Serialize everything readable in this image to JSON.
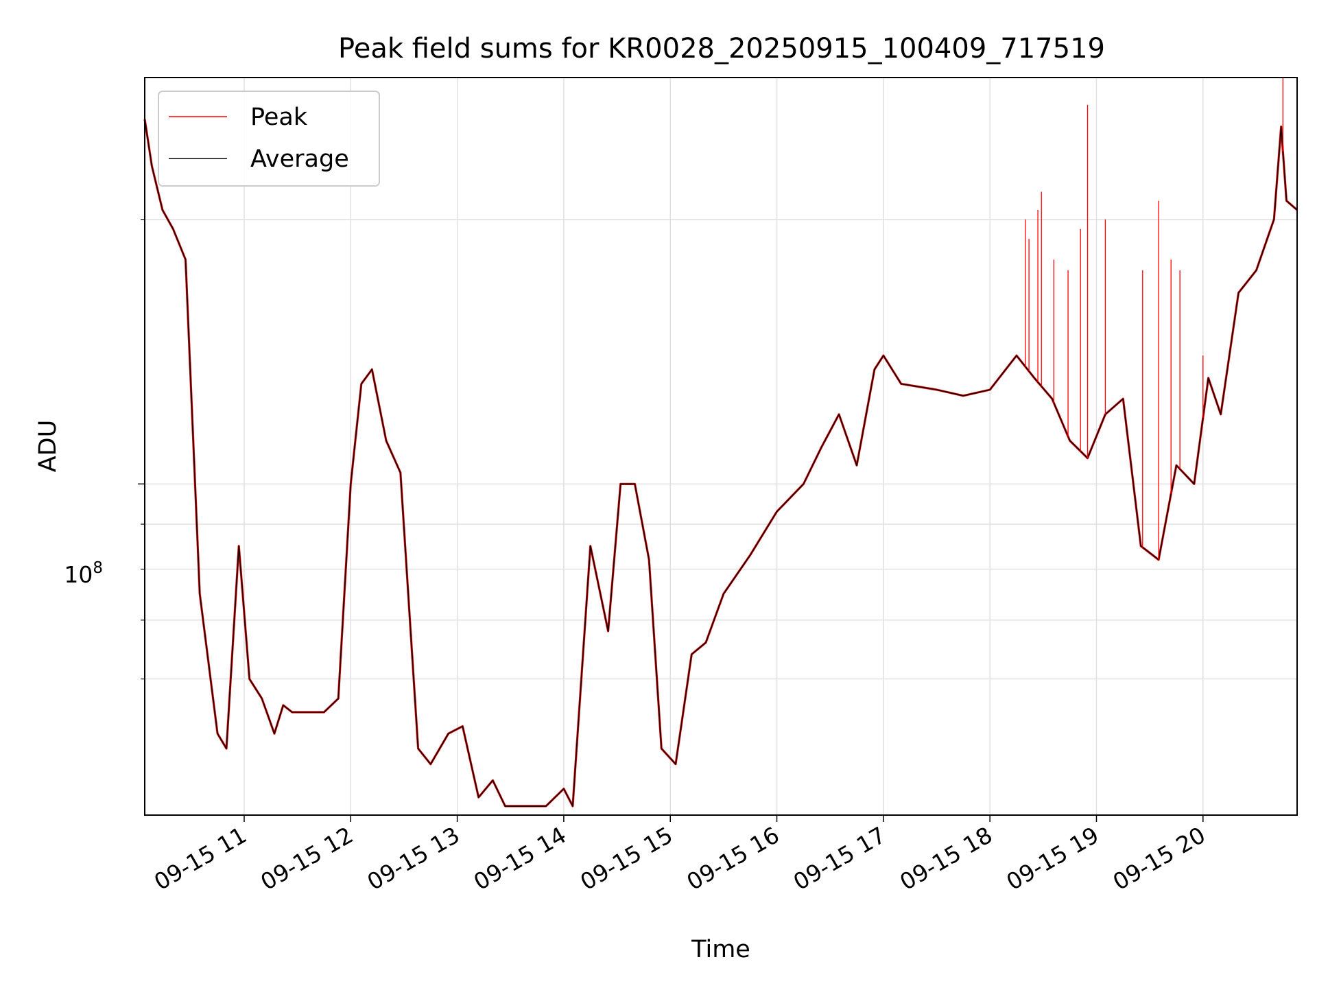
{
  "chart_data": {
    "type": "line",
    "title": "Peak field sums for KR0028_20250915_100409_717519",
    "xlabel": "Time",
    "ylabel": "ADU",
    "y_scale": "log",
    "y_tick_base": "10",
    "y_tick_exp": "8",
    "xlim": [
      "2025-09-15 10:04",
      "2025-09-15 20:53"
    ],
    "ylim": [
      42000000,
      290000000
    ],
    "x_ticks": [
      "09-15 11",
      "09-15 12",
      "09-15 13",
      "09-15 14",
      "09-15 15",
      "09-15 16",
      "09-15 17",
      "09-15 18",
      "09-15 19",
      "09-15 20"
    ],
    "x_tick_times": [
      "2025-09-15 11:00",
      "2025-09-15 12:00",
      "2025-09-15 13:00",
      "2025-09-15 14:00",
      "2025-09-15 15:00",
      "2025-09-15 16:00",
      "2025-09-15 17:00",
      "2025-09-15 18:00",
      "2025-09-15 19:00",
      "2025-09-15 20:00"
    ],
    "y_minor_ticks": [
      60000000,
      70000000,
      80000000,
      90000000,
      200000000
    ],
    "grid": true,
    "legend_position": "top-left",
    "colors": {
      "Peak": "#ff0000",
      "Average": "#000000"
    },
    "series": [
      {
        "name": "Peak",
        "x": [
          "2025-09-15 18:20",
          "2025-09-15 18:22",
          "2025-09-15 18:27",
          "2025-09-15 18:29",
          "2025-09-15 18:36",
          "2025-09-15 18:44",
          "2025-09-15 18:51",
          "2025-09-15 18:55",
          "2025-09-15 19:05",
          "2025-09-15 19:26",
          "2025-09-15 19:35",
          "2025-09-15 19:42",
          "2025-09-15 19:47",
          "2025-09-15 20:00",
          "2025-09-15 20:45"
        ],
        "y": [
          200000000,
          190000000,
          205000000,
          215000000,
          180000000,
          175000000,
          195000000,
          270000000,
          200000000,
          175000000,
          210000000,
          180000000,
          175000000,
          140000000,
          290000000
        ]
      },
      {
        "name": "Average",
        "x": [
          "2025-09-15 10:04",
          "2025-09-15 10:08",
          "2025-09-15 10:14",
          "2025-09-15 10:20",
          "2025-09-15 10:27",
          "2025-09-15 10:35",
          "2025-09-15 10:45",
          "2025-09-15 10:50",
          "2025-09-15 10:57",
          "2025-09-15 11:03",
          "2025-09-15 11:10",
          "2025-09-15 11:17",
          "2025-09-15 11:22",
          "2025-09-15 11:27",
          "2025-09-15 11:35",
          "2025-09-15 11:45",
          "2025-09-15 11:53",
          "2025-09-15 12:00",
          "2025-09-15 12:06",
          "2025-09-15 12:12",
          "2025-09-15 12:20",
          "2025-09-15 12:28",
          "2025-09-15 12:38",
          "2025-09-15 12:45",
          "2025-09-15 12:55",
          "2025-09-15 13:03",
          "2025-09-15 13:12",
          "2025-09-15 13:20",
          "2025-09-15 13:27",
          "2025-09-15 13:35",
          "2025-09-15 13:50",
          "2025-09-15 14:00",
          "2025-09-15 14:05",
          "2025-09-15 14:15",
          "2025-09-15 14:25",
          "2025-09-15 14:32",
          "2025-09-15 14:40",
          "2025-09-15 14:48",
          "2025-09-15 14:55",
          "2025-09-15 15:03",
          "2025-09-15 15:12",
          "2025-09-15 15:20",
          "2025-09-15 15:30",
          "2025-09-15 15:45",
          "2025-09-15 16:00",
          "2025-09-15 16:15",
          "2025-09-15 16:25",
          "2025-09-15 16:35",
          "2025-09-15 16:45",
          "2025-09-15 16:55",
          "2025-09-15 17:00",
          "2025-09-15 17:10",
          "2025-09-15 17:30",
          "2025-09-15 17:45",
          "2025-09-15 18:00",
          "2025-09-15 18:15",
          "2025-09-15 18:25",
          "2025-09-15 18:35",
          "2025-09-15 18:45",
          "2025-09-15 18:55",
          "2025-09-15 19:05",
          "2025-09-15 19:15",
          "2025-09-15 19:25",
          "2025-09-15 19:35",
          "2025-09-15 19:45",
          "2025-09-15 19:55",
          "2025-09-15 20:03",
          "2025-09-15 20:10",
          "2025-09-15 20:20",
          "2025-09-15 20:30",
          "2025-09-15 20:40",
          "2025-09-15 20:44",
          "2025-09-15 20:47",
          "2025-09-15 20:53"
        ],
        "y": [
          260000000,
          230000000,
          205000000,
          195000000,
          180000000,
          75000000,
          52000000,
          50000000,
          85000000,
          60000000,
          57000000,
          52000000,
          56000000,
          55000000,
          55000000,
          55000000,
          57000000,
          100000000,
          130000000,
          135000000,
          112000000,
          103000000,
          50000000,
          48000000,
          52000000,
          53000000,
          44000000,
          46000000,
          43000000,
          43000000,
          43000000,
          45000000,
          43000000,
          85000000,
          68000000,
          100000000,
          100000000,
          82000000,
          50000000,
          48000000,
          64000000,
          66000000,
          75000000,
          83000000,
          93000000,
          100000000,
          110000000,
          120000000,
          105000000,
          135000000,
          140000000,
          130000000,
          128000000,
          126000000,
          128000000,
          140000000,
          132000000,
          125000000,
          112000000,
          107000000,
          120000000,
          125000000,
          85000000,
          82000000,
          105000000,
          100000000,
          132000000,
          120000000,
          165000000,
          175000000,
          200000000,
          255000000,
          210000000,
          205000000
        ]
      }
    ],
    "legend": [
      "Peak",
      "Average"
    ]
  }
}
